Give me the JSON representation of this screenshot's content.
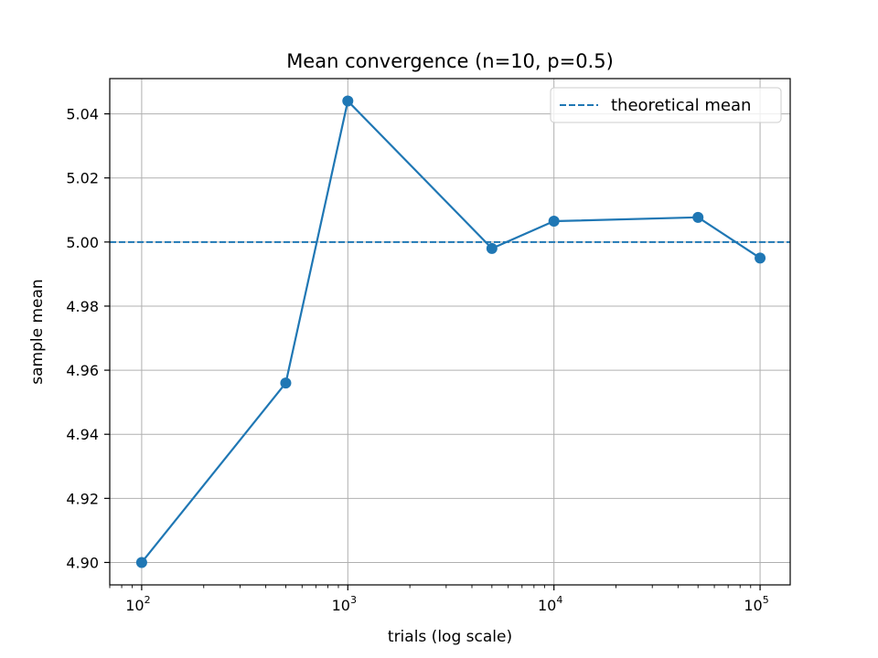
{
  "chart_data": {
    "type": "line",
    "title": "Mean convergence (n=10, p=0.5)",
    "xlabel": "trials (log scale)",
    "ylabel": "sample mean",
    "xscale": "log",
    "xlim": [
      70,
      140000
    ],
    "ylim": [
      4.893,
      5.051
    ],
    "xticks": [
      100,
      1000,
      10000,
      100000
    ],
    "xtick_labels": [
      {
        "base": "10",
        "exp": "2"
      },
      {
        "base": "10",
        "exp": "3"
      },
      {
        "base": "10",
        "exp": "4"
      },
      {
        "base": "10",
        "exp": "5"
      }
    ],
    "yticks": [
      4.9,
      4.92,
      4.94,
      4.96,
      4.98,
      5.0,
      5.02,
      5.04
    ],
    "ytick_labels": [
      "4.90",
      "4.92",
      "4.94",
      "4.96",
      "4.98",
      "5.00",
      "5.02",
      "5.04"
    ],
    "grid": true,
    "series": [
      {
        "color": "#1f77b4",
        "marker": "circle",
        "x": [
          100,
          500,
          1000,
          5000,
          10000,
          50000,
          100000
        ],
        "y": [
          4.9,
          4.956,
          5.044,
          4.998,
          5.0065,
          5.0077,
          4.995
        ]
      }
    ],
    "reference_lines": [
      {
        "name": "theoretical mean",
        "y": 5.0,
        "style": "dashed",
        "color": "#1f77b4"
      }
    ],
    "legend": {
      "position": "top-right",
      "entries": [
        {
          "label": "theoretical mean",
          "style": "dashed",
          "color": "#1f77b4"
        }
      ]
    }
  }
}
